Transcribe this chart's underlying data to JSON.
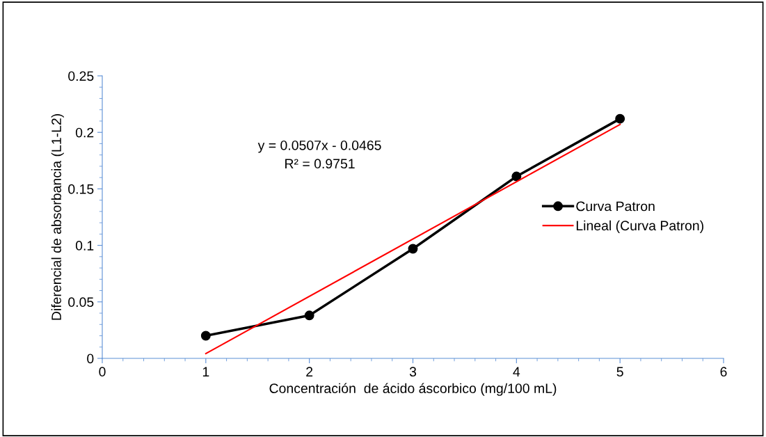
{
  "chart_data": {
    "type": "line",
    "xlabel": "Concentración  de ácido áscorbico (mg/100 mL)",
    "ylabel": "Diferencial de absorbancia (L1-L2)",
    "x": [
      1,
      2,
      3,
      4,
      5
    ],
    "series": [
      {
        "name": "Curva Patron",
        "color": "#000000",
        "values": [
          0.02,
          0.038,
          0.097,
          0.161,
          0.212
        ],
        "marker": "circle"
      },
      {
        "name": "Lineal (Curva Patron)",
        "color": "#ff0000",
        "x": [
          1,
          5
        ],
        "values": [
          0.0042,
          0.207
        ],
        "marker": "none"
      }
    ],
    "annotations": [
      "y = 0.0507x - 0.0465",
      "R² = 0.9751"
    ],
    "xlim": [
      0,
      6
    ],
    "xticks": [
      0,
      1,
      2,
      3,
      4,
      5,
      6
    ],
    "ylim": [
      0,
      0.25
    ],
    "yticks": [
      0,
      0.05,
      0.1,
      0.15,
      0.2,
      0.25
    ],
    "grid": false,
    "legend": "right"
  }
}
